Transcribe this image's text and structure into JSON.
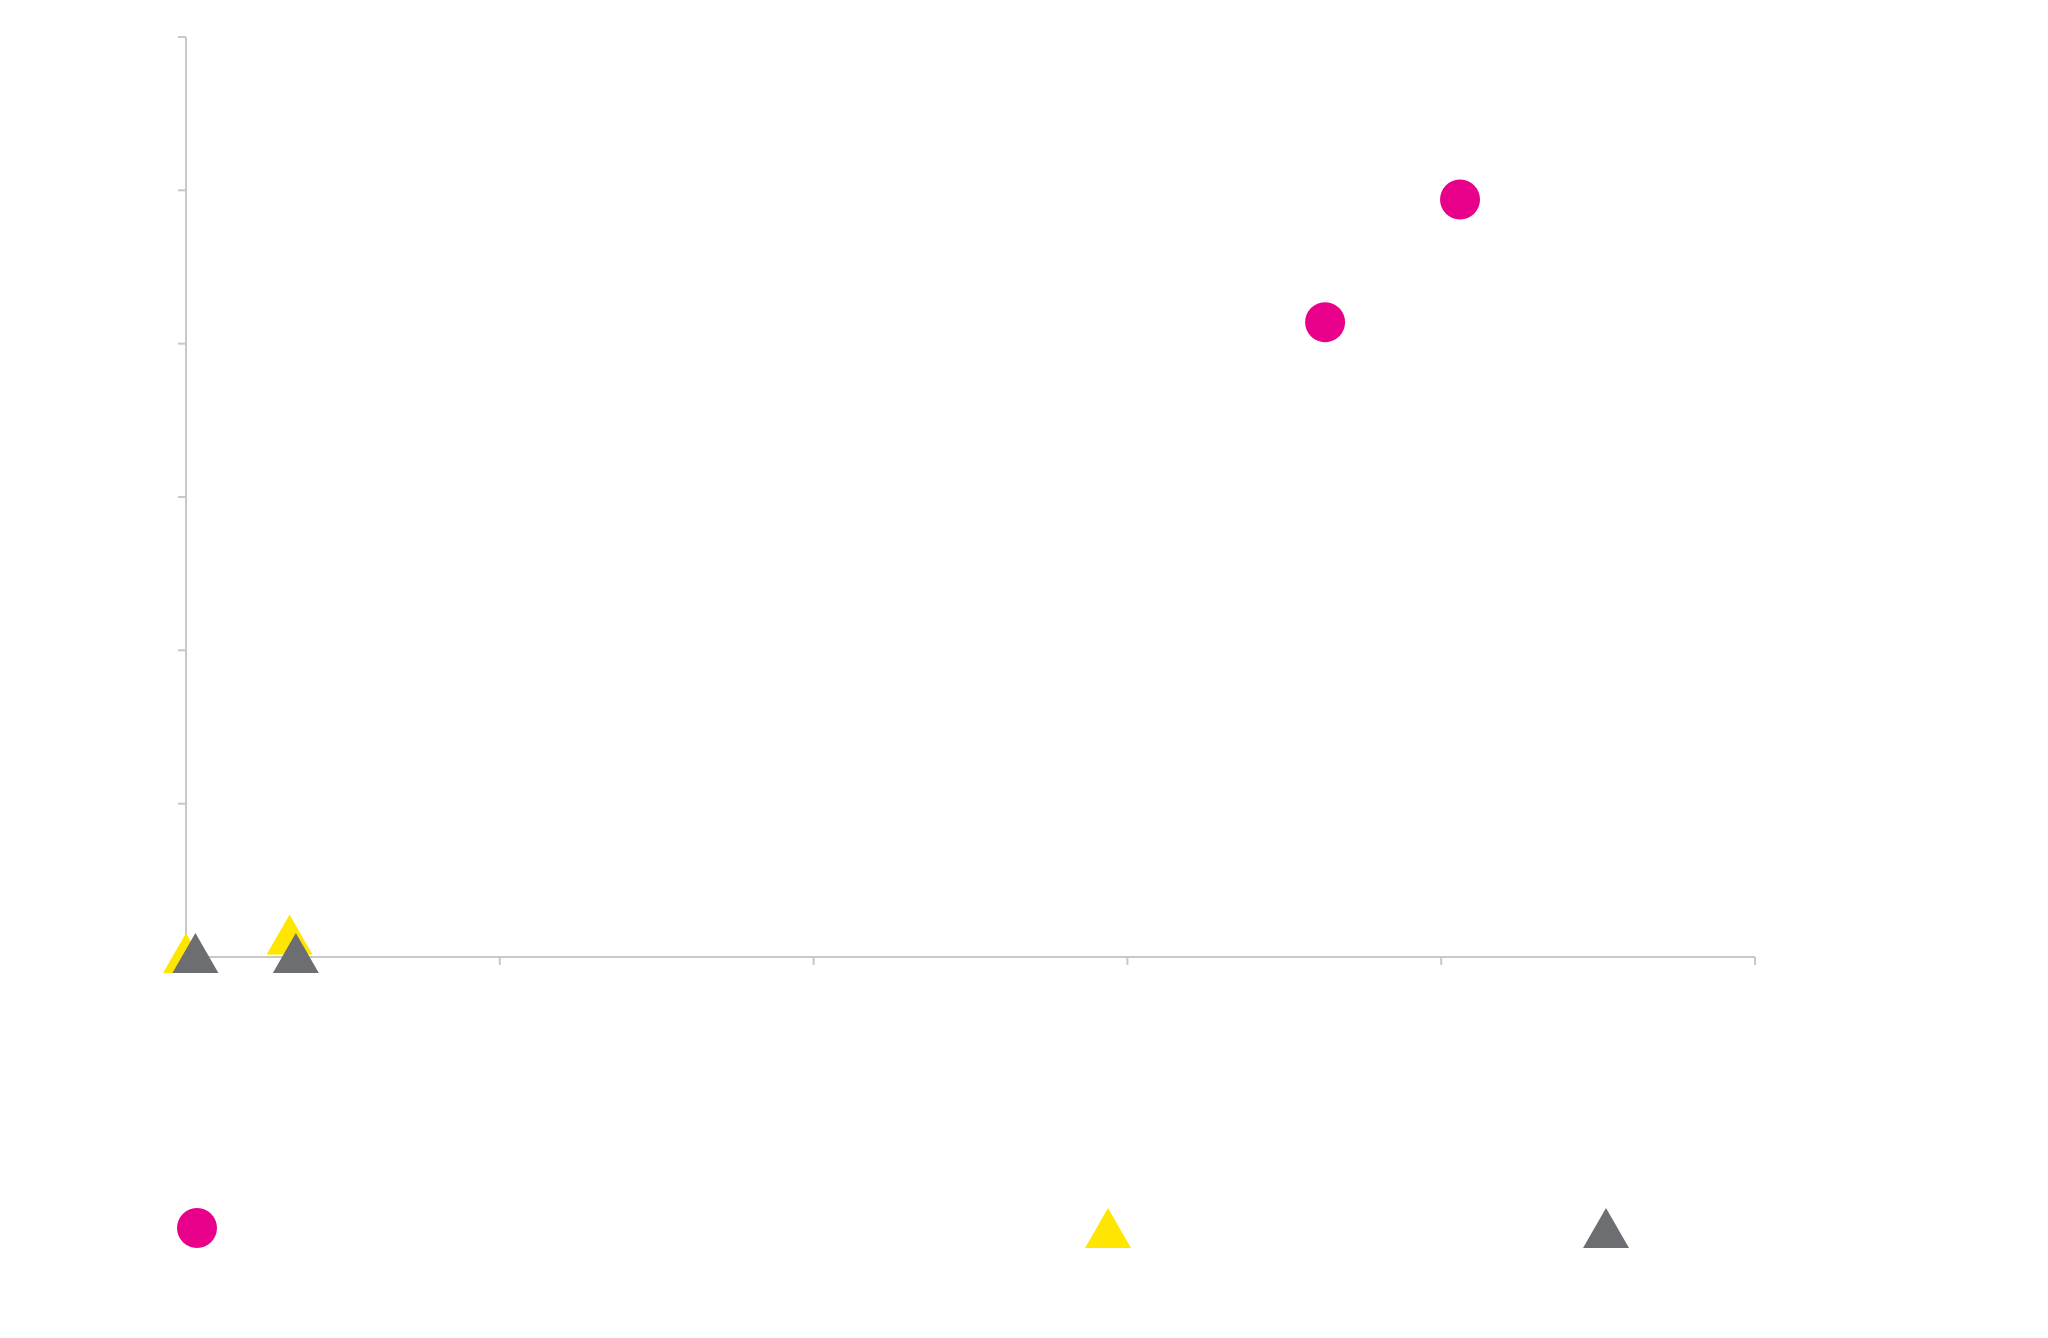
{
  "chart_data": {
    "type": "scatter",
    "title": "",
    "xlabel": "",
    "ylabel": "",
    "xlim": [
      0,
      5
    ],
    "ylim": [
      0,
      6
    ],
    "x_ticks": [
      0,
      1,
      2,
      3,
      4,
      5
    ],
    "y_ticks": [
      0,
      1,
      2,
      3,
      4,
      5,
      6
    ],
    "tick_labels_visible": false,
    "grid": false,
    "legend_position": "bottom",
    "series": [
      {
        "name": "",
        "marker": "circle",
        "color": "#E8008A",
        "points": [
          {
            "x": 3.63,
            "y": 4.14
          },
          {
            "x": 4.06,
            "y": 4.94
          }
        ]
      },
      {
        "name": "",
        "marker": "triangle",
        "color": "#FFE600",
        "points": [
          {
            "x": 0.0,
            "y": 0.0
          },
          {
            "x": 0.33,
            "y": 0.12
          }
        ]
      },
      {
        "name": "",
        "marker": "triangle",
        "color": "#6D6E71",
        "points": [
          {
            "x": 0.03,
            "y": 0.0
          },
          {
            "x": 0.35,
            "y": 0.0
          }
        ]
      }
    ]
  }
}
